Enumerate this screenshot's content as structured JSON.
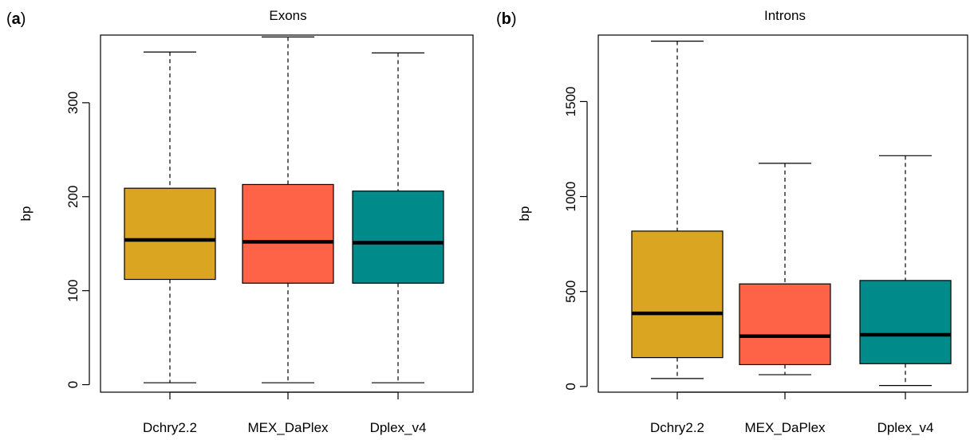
{
  "chart_data": [
    {
      "type": "boxplot",
      "panel_label": "a",
      "title": "Exons",
      "xlabel": "",
      "ylabel": "bp",
      "ylim": [
        -8,
        372
      ],
      "yticks": [
        0,
        100,
        200,
        300
      ],
      "categories": [
        "Dchry2.2",
        "MEX_DaPlex",
        "Dplex_v4"
      ],
      "colors": [
        "#DAA520",
        "#FF6347",
        "#008B8B"
      ],
      "boxes": [
        {
          "name": "Dchry2.2",
          "min": 2,
          "q1": 112,
          "median": 154,
          "q3": 209,
          "max": 354
        },
        {
          "name": "MEX_DaPlex",
          "min": 2,
          "q1": 108,
          "median": 152,
          "q3": 213,
          "max": 370
        },
        {
          "name": "Dplex_v4",
          "min": 2,
          "q1": 108,
          "median": 151,
          "q3": 206,
          "max": 353
        }
      ]
    },
    {
      "type": "boxplot",
      "panel_label": "b",
      "title": "Introns",
      "xlabel": "",
      "ylabel": "bp",
      "ylim": [
        -30,
        1850
      ],
      "yticks": [
        0,
        500,
        1000,
        1500
      ],
      "categories": [
        "Dchry2.2",
        "MEX_DaPlex",
        "Dplex_v4"
      ],
      "colors": [
        "#DAA520",
        "#FF6347",
        "#008B8B"
      ],
      "boxes": [
        {
          "name": "Dchry2.2",
          "min": 42,
          "q1": 152,
          "median": 385,
          "q3": 818,
          "max": 1818
        },
        {
          "name": "MEX_DaPlex",
          "min": 62,
          "q1": 115,
          "median": 265,
          "q3": 540,
          "max": 1175
        },
        {
          "name": "Dplex_v4",
          "min": 5,
          "q1": 120,
          "median": 272,
          "q3": 558,
          "max": 1215
        }
      ]
    }
  ]
}
